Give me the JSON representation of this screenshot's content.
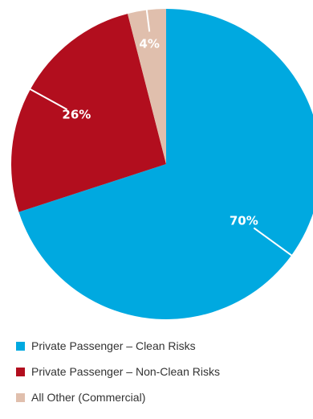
{
  "chart_data": {
    "type": "pie",
    "start_angle_deg": 0,
    "direction": "clockwise",
    "legend_position": "bottom",
    "series": [
      {
        "name": "Private Passenger – Clean Risks",
        "value": 70,
        "label": "70%",
        "color": "#00a9e0"
      },
      {
        "name": "Private Passenger – Non-Clean Risks",
        "value": 26,
        "label": "26%",
        "color": "#b20e1e"
      },
      {
        "name": "All Other (Commercial)",
        "value": 4,
        "label": "4%",
        "color": "#e0bfad"
      }
    ]
  }
}
